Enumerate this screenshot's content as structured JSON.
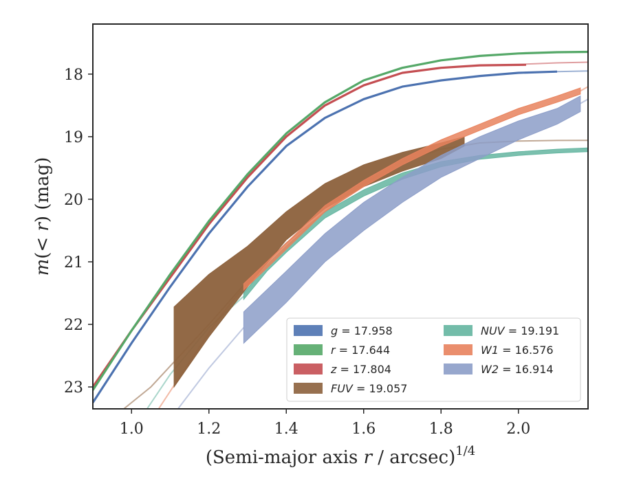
{
  "chart_data": {
    "type": "line",
    "title": "",
    "xlabel": "(Semi-major axis r / arcsec)^{1/4}",
    "ylabel": "m(< r) (mag)",
    "xlim": [
      0.9,
      2.18
    ],
    "ylim": [
      23.35,
      17.2
    ],
    "y_inverted": true,
    "grid": false,
    "legend_position": "lower-right",
    "xticks": [
      1.0,
      1.2,
      1.4,
      1.6,
      1.8,
      2.0
    ],
    "xtick_labels": [
      "1.0",
      "1.2",
      "1.4",
      "1.6",
      "1.8",
      "2.0"
    ],
    "yticks": [
      18,
      19,
      20,
      21,
      22,
      23
    ],
    "ytick_labels": [
      "18",
      "19",
      "20",
      "21",
      "22",
      "23"
    ],
    "series": [
      {
        "key": "g",
        "label": "g = 17.958",
        "color": "#4c72b0",
        "kind": "line",
        "x": [
          0.9,
          1.0,
          1.1,
          1.2,
          1.3,
          1.4,
          1.5,
          1.6,
          1.7,
          1.8,
          1.9,
          2.0,
          2.1
        ],
        "y": [
          23.25,
          22.3,
          21.4,
          20.55,
          19.8,
          19.15,
          18.7,
          18.4,
          18.2,
          18.1,
          18.03,
          17.98,
          17.96
        ],
        "ext_x": [
          2.1,
          2.18
        ],
        "ext_y": [
          17.96,
          17.95
        ]
      },
      {
        "key": "r",
        "label": "r = 17.644",
        "color": "#55a868",
        "kind": "line",
        "x": [
          0.9,
          1.0,
          1.1,
          1.2,
          1.3,
          1.4,
          1.5,
          1.6,
          1.7,
          1.8,
          1.9,
          2.0,
          2.1,
          2.18
        ],
        "y": [
          23.05,
          22.1,
          21.2,
          20.35,
          19.6,
          18.95,
          18.45,
          18.1,
          17.9,
          17.78,
          17.71,
          17.67,
          17.65,
          17.645
        ]
      },
      {
        "key": "z",
        "label": "z = 17.804",
        "color": "#c44e52",
        "kind": "line",
        "x": [
          0.9,
          1.0,
          1.1,
          1.2,
          1.3,
          1.4,
          1.5,
          1.6,
          1.7,
          1.8,
          1.9,
          2.02
        ],
        "y": [
          23.0,
          22.1,
          21.25,
          20.4,
          19.65,
          19.0,
          18.5,
          18.18,
          17.98,
          17.9,
          17.86,
          17.85
        ],
        "ext_x": [
          2.02,
          2.1,
          2.18
        ],
        "ext_y": [
          17.84,
          17.82,
          17.81
        ]
      },
      {
        "key": "FUV",
        "label": "FUV = 19.057",
        "color": "#8c613c",
        "kind": "band",
        "x": [
          1.11,
          1.2,
          1.3,
          1.4,
          1.5,
          1.6,
          1.7,
          1.8,
          1.86
        ],
        "y_low": [
          21.72,
          21.2,
          20.75,
          20.2,
          19.75,
          19.45,
          19.25,
          19.1,
          19.0
        ],
        "y_high": [
          23.0,
          22.2,
          21.4,
          20.65,
          20.15,
          19.8,
          19.55,
          19.35,
          19.15
        ],
        "ext_x": [
          0.98,
          1.05,
          1.11,
          1.2,
          1.3,
          1.4,
          1.5,
          1.6,
          1.7,
          1.8,
          1.9,
          2.0,
          2.1,
          2.18
        ],
        "ext_y": [
          23.35,
          23.0,
          22.6,
          22.0,
          21.3,
          20.7,
          20.2,
          19.75,
          19.4,
          19.2,
          19.1,
          19.07,
          19.06,
          19.058
        ]
      },
      {
        "key": "NUV",
        "label": "NUV = 19.191",
        "color": "#64b5a0",
        "kind": "band",
        "x": [
          1.29,
          1.35,
          1.4,
          1.5,
          1.6,
          1.7,
          1.8,
          1.9,
          2.0,
          2.1,
          2.18
        ],
        "y_low": [
          21.5,
          21.05,
          20.75,
          20.2,
          19.85,
          19.58,
          19.4,
          19.3,
          19.24,
          19.2,
          19.18
        ],
        "y_high": [
          21.6,
          21.15,
          20.85,
          20.3,
          19.95,
          19.68,
          19.48,
          19.36,
          19.3,
          19.26,
          19.24
        ],
        "ext_x": [
          1.04,
          1.1,
          1.2,
          1.29
        ],
        "ext_y": [
          23.35,
          22.8,
          22.05,
          21.55
        ]
      },
      {
        "key": "W1",
        "label": "W1 = 16.576",
        "color": "#e8825d",
        "kind": "band",
        "x": [
          1.29,
          1.35,
          1.4,
          1.5,
          1.6,
          1.7,
          1.8,
          1.9,
          2.0,
          2.1,
          2.16
        ],
        "y_low": [
          21.35,
          21.0,
          20.7,
          20.1,
          19.7,
          19.35,
          19.05,
          18.8,
          18.55,
          18.35,
          18.22
        ],
        "y_high": [
          21.45,
          21.1,
          20.8,
          20.2,
          19.8,
          19.45,
          19.15,
          18.9,
          18.65,
          18.45,
          18.32
        ],
        "ext_x": [
          1.07,
          1.15,
          1.22,
          1.29
        ],
        "ext_y": [
          23.35,
          22.6,
          21.95,
          21.4
        ],
        "ext2_x": [
          2.16,
          2.18
        ],
        "ext2_y": [
          18.27,
          18.2
        ]
      },
      {
        "key": "W2",
        "label": "W2 = 16.914",
        "color": "#8c9dc8",
        "kind": "band",
        "x": [
          1.29,
          1.4,
          1.5,
          1.6,
          1.7,
          1.8,
          1.9,
          2.0,
          2.1,
          2.16
        ],
        "y_low": [
          21.8,
          21.15,
          20.55,
          20.05,
          19.65,
          19.3,
          19.0,
          18.75,
          18.55,
          18.35
        ],
        "y_high": [
          22.3,
          21.65,
          21.0,
          20.5,
          20.05,
          19.65,
          19.35,
          19.05,
          18.8,
          18.6
        ],
        "ext_x": [
          1.12,
          1.2,
          1.29
        ],
        "ext_y": [
          23.35,
          22.7,
          22.05
        ],
        "ext2_x": [
          2.16,
          2.18
        ],
        "ext2_y": [
          18.47,
          18.4
        ]
      }
    ],
    "legend": {
      "columns": [
        [
          {
            "label_var": "g",
            "value": "17.958",
            "color": "#4c72b0"
          },
          {
            "label_var": "r",
            "value": "17.644",
            "color": "#55a868"
          },
          {
            "label_var": "z",
            "value": "17.804",
            "color": "#c44e52"
          },
          {
            "label_var": "FUV",
            "value": "19.057",
            "color": "#8c613c"
          }
        ],
        [
          {
            "label_var": "NUV",
            "value": "19.191",
            "color": "#64b5a0"
          },
          {
            "label_var": "W1",
            "value": "16.576",
            "color": "#e8825d"
          },
          {
            "label_var": "W2",
            "value": "16.914",
            "color": "#8c9dc8"
          }
        ]
      ]
    }
  }
}
